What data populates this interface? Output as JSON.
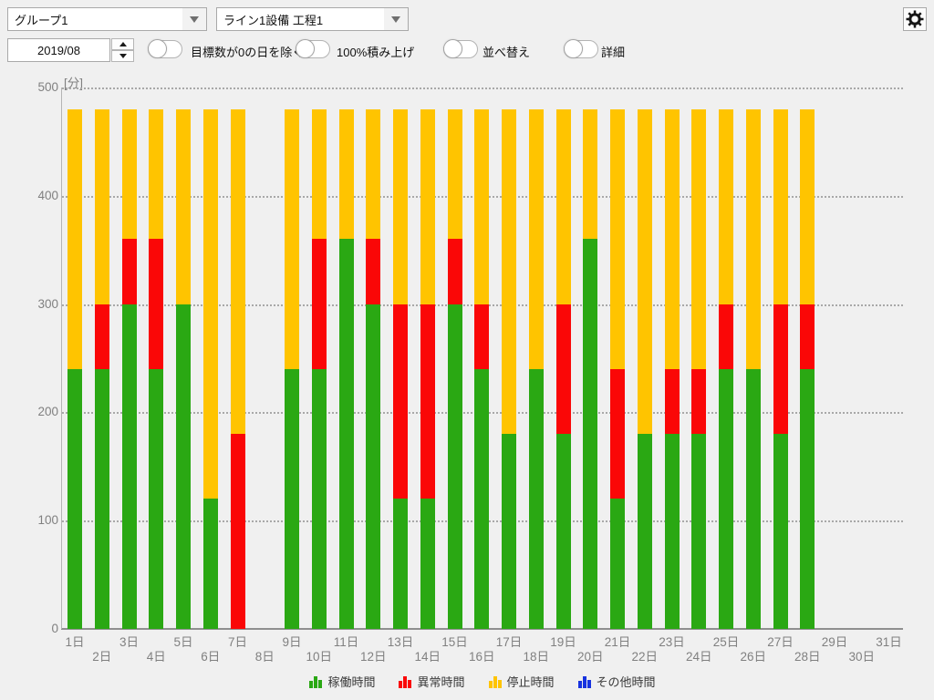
{
  "toolbar": {
    "group_select": {
      "value": "グループ1"
    },
    "line_select": {
      "value": "ライン1設備 工程1"
    },
    "month_input": {
      "value": "2019/08"
    },
    "toggles": [
      {
        "label": "目標数が0の日を除く",
        "state": "off"
      },
      {
        "label": "100%積み上げ",
        "state": "off"
      },
      {
        "label": "並べ替え",
        "state": "off"
      },
      {
        "label": "詳細",
        "state": "off"
      }
    ]
  },
  "chart_data": {
    "type": "bar",
    "stacked": true,
    "unit_label": "[分]",
    "ylim": [
      0,
      500
    ],
    "yticks": [
      0,
      100,
      200,
      300,
      400,
      500
    ],
    "grid": "dotted horizontal",
    "legend_position": "bottom",
    "categories": [
      "1日",
      "2日",
      "3日",
      "4日",
      "5日",
      "6日",
      "7日",
      "8日",
      "9日",
      "10日",
      "11日",
      "12日",
      "13日",
      "14日",
      "15日",
      "16日",
      "17日",
      "18日",
      "19日",
      "20日",
      "21日",
      "22日",
      "23日",
      "24日",
      "25日",
      "26日",
      "27日",
      "28日",
      "29日",
      "30日",
      "31日"
    ],
    "series": [
      {
        "name": "稼働時間",
        "color": "#2aa813",
        "values": [
          240,
          240,
          300,
          240,
          300,
          120,
          0,
          0,
          240,
          240,
          360,
          300,
          120,
          120,
          300,
          240,
          180,
          240,
          180,
          360,
          120,
          180,
          180,
          180,
          240,
          240,
          180,
          240,
          0,
          0,
          0
        ]
      },
      {
        "name": "異常時間",
        "color": "#fa0707",
        "values": [
          0,
          60,
          60,
          120,
          0,
          0,
          180,
          0,
          0,
          120,
          0,
          60,
          180,
          180,
          60,
          60,
          0,
          0,
          120,
          0,
          120,
          0,
          60,
          60,
          60,
          0,
          120,
          60,
          0,
          0,
          0
        ]
      },
      {
        "name": "停止時間",
        "color": "#ffc400",
        "values": [
          240,
          180,
          120,
          120,
          180,
          360,
          300,
          0,
          240,
          120,
          120,
          120,
          180,
          180,
          120,
          180,
          300,
          240,
          180,
          120,
          240,
          300,
          240,
          240,
          180,
          240,
          180,
          180,
          0,
          0,
          0
        ]
      },
      {
        "name": "その他時間",
        "color": "#1733e0",
        "values": [
          0,
          0,
          0,
          0,
          0,
          0,
          0,
          0,
          0,
          0,
          0,
          0,
          0,
          0,
          0,
          0,
          0,
          0,
          0,
          0,
          0,
          0,
          0,
          0,
          0,
          0,
          0,
          0,
          0,
          0,
          0
        ]
      }
    ]
  }
}
